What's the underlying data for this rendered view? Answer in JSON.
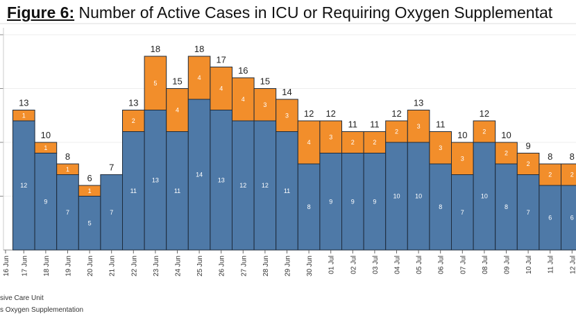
{
  "title": {
    "figure_label": "Figure 6:",
    "text": "Number of Active Cases in ICU or Requiring Oxygen Supplementat"
  },
  "legend": [
    "sive Care Unit",
    "s Oxygen Supplementation"
  ],
  "colors": {
    "icu": "#4e79a7",
    "oxygen": "#f28e2b"
  },
  "chart_data": {
    "type": "bar",
    "stacked": true,
    "title": "Figure 6: Number of Active Cases in ICU or Requiring Oxygen Supplementat",
    "categories": [
      "17 Jun",
      "18 Jun",
      "19 Jun",
      "20 Jun",
      "21 Jun",
      "22 Jun",
      "23 Jun",
      "24 Jun",
      "25 Jun",
      "26 Jun",
      "27 Jun",
      "28 Jun",
      "29 Jun",
      "30 Jun",
      "01 Jul",
      "02 Jul",
      "03 Jul",
      "04 Jul",
      "05 Jul",
      "06 Jul",
      "07 Jul",
      "08 Jul",
      "09 Jul",
      "10 Jul",
      "11 Jul",
      "12 Jul"
    ],
    "x_tick_first": "16 Jun",
    "series": [
      {
        "name": "sive Care Unit",
        "values": [
          12,
          9,
          7,
          5,
          7,
          11,
          13,
          11,
          14,
          13,
          12,
          12,
          11,
          8,
          9,
          9,
          9,
          10,
          10,
          8,
          7,
          10,
          8,
          7,
          6,
          6
        ]
      },
      {
        "name": "s Oxygen Supplementation",
        "values": [
          1,
          1,
          1,
          1,
          0,
          2,
          5,
          4,
          4,
          4,
          4,
          3,
          3,
          4,
          3,
          2,
          2,
          2,
          3,
          3,
          3,
          2,
          2,
          2,
          2,
          2
        ]
      }
    ],
    "totals": [
      13,
      10,
      8,
      6,
      7,
      13,
      18,
      15,
      18,
      17,
      16,
      15,
      14,
      12,
      12,
      11,
      11,
      12,
      13,
      11,
      10,
      12,
      10,
      9,
      8,
      8
    ],
    "ylim": [
      0,
      20
    ],
    "grid": true,
    "legend_position": "bottom-left"
  }
}
